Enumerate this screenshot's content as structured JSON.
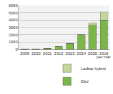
{
  "chart_data": {
    "type": "bar",
    "stacked": true,
    "categories": [
      "2009",
      "2010",
      "2011",
      "2012",
      "2013",
      "2014",
      "2015",
      "2016"
    ],
    "series": [
      {
        "name": "Elbil",
        "color": "#7ab648",
        "values": [
          50,
          50,
          150,
          400,
          800,
          2000,
          3300,
          4000
        ]
      },
      {
        "name": "Ladbar hybrid",
        "color": "#c4d79b",
        "values": [
          0,
          0,
          0,
          0,
          0,
          0,
          300,
          1100
        ]
      }
    ],
    "annotations": [
      {
        "text": "per mar",
        "category": "2016"
      }
    ],
    "ylim": [
      0,
      6000
    ],
    "yticks": [
      0,
      1000,
      2000,
      3000,
      4000,
      5000,
      6000
    ],
    "grid": true,
    "legend": "bottom right"
  }
}
